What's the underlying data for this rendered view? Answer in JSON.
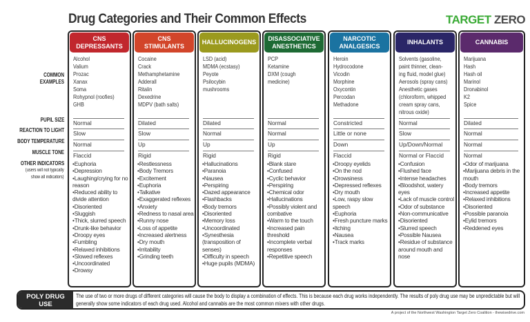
{
  "title": "Drug Categories and Their Common Effects",
  "logo": {
    "part1": "TARGET ",
    "part2": "ZERO"
  },
  "row_labels": {
    "examples": "COMMON\nEXAMPLES",
    "pupil": "PUPIL SIZE",
    "reaction": "REACTION TO LIGHT",
    "temp": "BODY TEMPERATURE",
    "muscle": "MUSCLE TONE",
    "other": "OTHER INDICATORS",
    "other_note1": "(users will not typically",
    "other_note2": "show all indicators)"
  },
  "columns": [
    {
      "name": "CNS\nDEPRESSANTS",
      "color": "#c1272d",
      "examples": "Alcohol\nValium\nProzac\nXanax\nSoma\nRohypnol (roofies)\nGHB",
      "pupil": "Normal",
      "reaction": "Slow",
      "temp": "Normal",
      "muscle": "Flaccid",
      "indicators": [
        "Euphoria",
        "Depression",
        "Laughing/crying for no reason",
        "Reduced ability to divide attention",
        "Disoriented",
        "Sluggish",
        "Thick, slurred speech",
        "Drunk-like behavior",
        "Droopy eyes",
        "Fumbling",
        "Relaxed inhibitions",
        "Slowed reflexes",
        "Uncoordinated",
        "Drowsy"
      ]
    },
    {
      "name": "CNS\nSTIMULANTS",
      "color": "#d2452a",
      "examples": "Cocaine\nCrack\nMethamphetamine\nAdderall\nRitalin\nDexedrine\nMDPV (bath salts)",
      "pupil": "Dilated",
      "reaction": "Slow",
      "temp": "Up",
      "muscle": "Rigid",
      "indicators": [
        "Restlessness",
        "Body Tremors",
        "Excitement",
        "Euphoria",
        "Talkative",
        "Exaggerated reflexes",
        "Anxiety",
        "Redness to nasal area",
        "Runny nose",
        "Loss of appetite",
        "Increased alertness",
        "Dry mouth",
        "Irritability",
        "Grinding teeth"
      ]
    },
    {
      "name": "HALLUCINOGENS",
      "color": "#9b9a1e",
      "examples": "LSD (acid)\nMDMA (ecstasy)\nPeyote\nPsilocybin\nmushrooms",
      "pupil": "Dilated",
      "reaction": "Normal",
      "temp": "Up",
      "muscle": "Rigid",
      "indicators": [
        "Hallucinations",
        "Paranoia",
        "Nausea",
        "Perspiring",
        "Dazed appearance",
        "Flashbacks",
        "Body tremors",
        "Disoriented",
        "Memory loss",
        "Uncoordinated",
        "Synesthesia (transposition of senses)",
        "Difficulty in speech",
        "Huge pupils (MDMA)"
      ]
    },
    {
      "name": "DISASSOCIATIVE\nANESTHETICS",
      "color": "#1d6a34",
      "examples": "PCP\nKetamine\nDXM (cough\nmedicine)",
      "pupil": "Normal",
      "reaction": "Normal",
      "temp": "Up",
      "muscle": "Rigid",
      "indicators": [
        "Blank stare",
        "Confused",
        "Cyclic behavior",
        "Perspiring",
        "Chemical odor",
        "Hallucinations",
        "Possibly violent and combative",
        "Warm to the touch",
        "Increased pain threshold",
        "Incomplete verbal responses",
        "Repetitive speech"
      ]
    },
    {
      "name": "NARCOTIC\nANALGESICS",
      "color": "#1b73a1",
      "examples": "Heroin\nHydrocodone\nVicodin\nMorphine\nOxycontin\nPercodan\nMethadone",
      "pupil": "Constricted",
      "reaction": "Little or none",
      "temp": "Down",
      "muscle": "Flaccid",
      "indicators": [
        "Droopy eyelids",
        "On the nod",
        "Drowsiness",
        "Depressed reflexes",
        "Dry mouth",
        "Low, raspy slow speech",
        "Euphoria",
        "Fresh puncture marks",
        "Itching",
        "Nausea",
        "Track marks"
      ]
    },
    {
      "name": "INHALANTS",
      "color": "#2a2667",
      "examples": "Solvents (gasoline,\npaint thinner, clean-\ning fluid, model glue)\nAerosols (spray cans)\nAnesthetic gases\n(chloroform, whipped\ncream spray cans,\nnitrous oxide)",
      "pupil": "Normal",
      "reaction": "Slow",
      "temp": "Up/Down/Normal",
      "muscle": "Normal or Flaccid",
      "indicators": [
        "Confusion",
        "Flushed face",
        "Intense headaches",
        "Bloodshot, watery eyes",
        "Lack of muscle control",
        "Odor of substance",
        "Non-communicative",
        "Disoriented",
        "Slurred speech",
        "Possible Nausea",
        "Residue of substance around mouth and nose"
      ]
    },
    {
      "name": "CANNABIS",
      "color": "#5b2a6c",
      "examples": "Marijuana\nHash\nHash oil\nMarinol\nDronabinol\nK2\nSpice",
      "pupil": "Dilated",
      "reaction": "Normal",
      "temp": "Normal",
      "muscle": "Normal",
      "indicators": [
        "Odor of marijuana",
        "Marijuana debris in the mouth",
        "Body tremors",
        "Increased appetite",
        "Relaxed inhibitions",
        "Disoriented",
        "Possible paranoia",
        "Eylid tremors",
        "Reddened eyes"
      ]
    }
  ],
  "poly": {
    "label": "POLY DRUG\nUSE",
    "text": "The use of two or more drugs of different categories will cause the body to display a combination of effects. This is because each drug works independently. The results of poly drug use may be unpredictable but will generally show some indicators of each drug used. Alcohol and cannabis are the most common mixers with other drugs."
  },
  "credit": "A project of the Northwest Washington Target Zero Coalition - thewisedrive.com"
}
